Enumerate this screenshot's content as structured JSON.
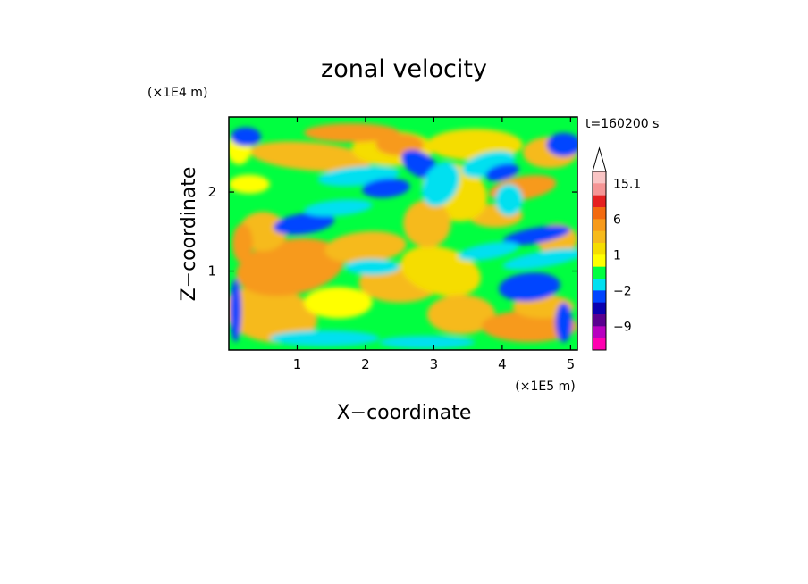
{
  "chart_data": {
    "type": "heatmap",
    "title": "zonal velocity",
    "time_label": "t=160200 s",
    "xlabel": "X−coordinate",
    "ylabel": "Z−coordinate",
    "x_unit": "(×1E5 m)",
    "y_unit": "(×1E4 m)",
    "xlim": [
      0,
      5.1
    ],
    "ylim": [
      0,
      2.95
    ],
    "x_ticks": [
      {
        "value": 1,
        "label": "1"
      },
      {
        "value": 2,
        "label": "2"
      },
      {
        "value": 3,
        "label": "3"
      },
      {
        "value": 4,
        "label": "4"
      },
      {
        "value": 5,
        "label": "5"
      }
    ],
    "y_ticks": [
      {
        "value": 1,
        "label": "1"
      },
      {
        "value": 2,
        "label": "2"
      }
    ],
    "colorbar": {
      "levels": [
        {
          "upper": 20.0,
          "color": "#f9c4c4"
        },
        {
          "upper": 15.1,
          "color": "#f59595"
        },
        {
          "upper": 12.0,
          "color": "#e52020"
        },
        {
          "upper": 9.0,
          "color": "#f26a10"
        },
        {
          "upper": 6.0,
          "color": "#f79a1b"
        },
        {
          "upper": 3.0,
          "color": "#f6ba1c"
        },
        {
          "upper": 2.0,
          "color": "#f5dd00"
        },
        {
          "upper": 1.0,
          "color": "#ffff00"
        },
        {
          "upper": 0.0,
          "color": "#00ff40"
        },
        {
          "upper": -1.0,
          "color": "#00e0f0"
        },
        {
          "upper": -2.0,
          "color": "#0044ff"
        },
        {
          "upper": -5.0,
          "color": "#0a00b0"
        },
        {
          "upper": -7.0,
          "color": "#5a0090"
        },
        {
          "upper": -9.0,
          "color": "#b800c0"
        },
        {
          "upper": -12.0,
          "color": "#ff00b0"
        }
      ],
      "labels": [
        {
          "value": 15.1,
          "label": "15.1"
        },
        {
          "value": 6,
          "label": "6"
        },
        {
          "value": 1,
          "label": "1"
        },
        {
          "value": -2,
          "label": "−2"
        },
        {
          "value": -9,
          "label": "−9"
        }
      ],
      "extend_top": true
    },
    "grid": false
  }
}
